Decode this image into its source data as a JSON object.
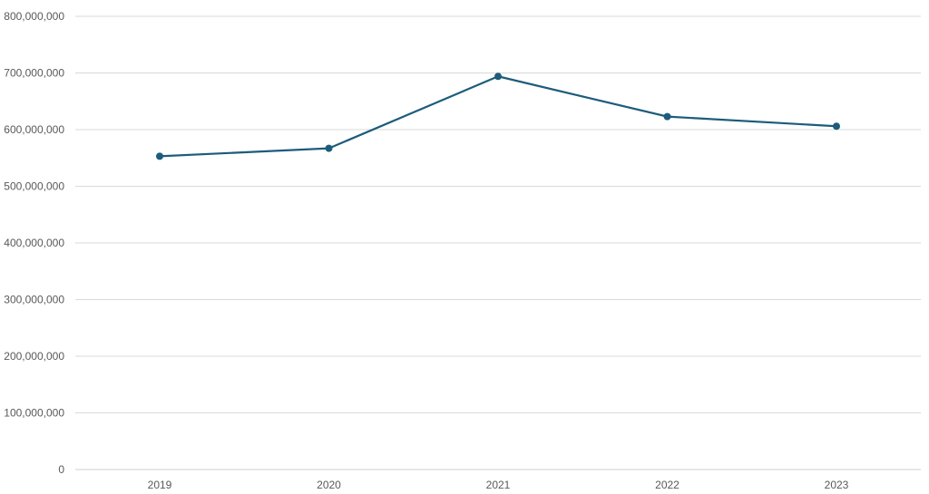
{
  "chart_data": {
    "type": "line",
    "categories": [
      "2019",
      "2020",
      "2021",
      "2022",
      "2023"
    ],
    "series": [
      {
        "values": [
          553000000,
          567000000,
          694000000,
          623000000,
          606000000
        ]
      }
    ],
    "ylim": [
      0,
      800000000
    ],
    "yticks": [
      0,
      100000000,
      200000000,
      300000000,
      400000000,
      500000000,
      600000000,
      700000000,
      800000000
    ],
    "ytick_labels": [
      "0",
      "100,000,000",
      "200,000,000",
      "300,000,000",
      "400,000,000",
      "500,000,000",
      "600,000,000",
      "700,000,000",
      "800,000,000"
    ],
    "grid": true,
    "legend": "none",
    "colors": {
      "series": "#1d5c7c",
      "grid": "#d9d9d9",
      "text": "#595959"
    }
  }
}
